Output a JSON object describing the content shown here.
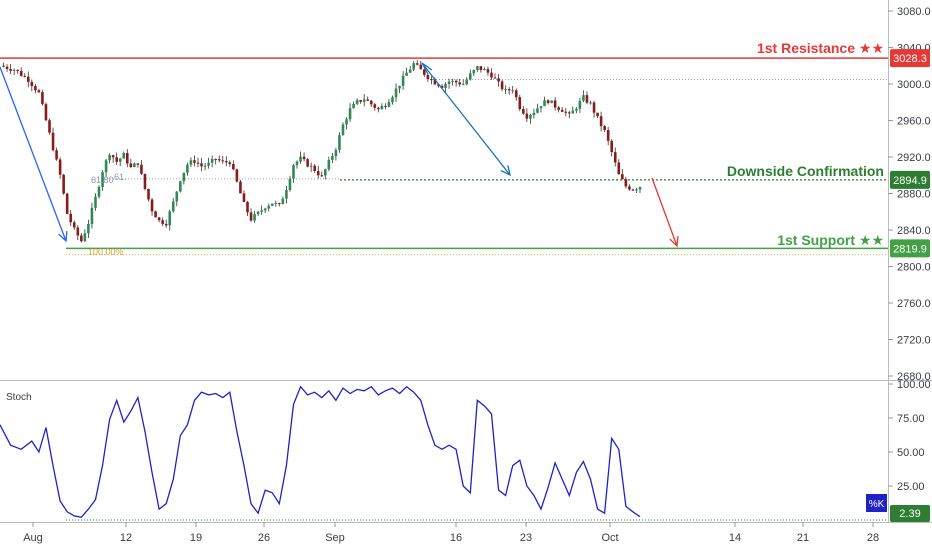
{
  "chart_data": [
    {
      "type": "candlestick",
      "ylim": [
        2660,
        3100
      ],
      "y_ticks": [
        "3080.0",
        "3040.0",
        "3000.0",
        "2960.0",
        "2920.0",
        "2880.0",
        "2840.0",
        "2800.0",
        "2760.0",
        "2720.0",
        "2680.0"
      ],
      "y_tick_values": [
        3080,
        3040,
        3000,
        2960,
        2920,
        2880,
        2840,
        2800,
        2760,
        2720,
        2680
      ],
      "x_ticks": [
        "Aug",
        "12",
        "19",
        "26",
        "Sep",
        "16",
        "23",
        "Oct",
        "14",
        "21",
        "28"
      ],
      "price_path": [
        [
          0,
          3020
        ],
        [
          4,
          3016
        ],
        [
          8,
          3005
        ],
        [
          11,
          2990
        ],
        [
          13,
          2960
        ],
        [
          15,
          2930
        ],
        [
          17,
          2900
        ],
        [
          19,
          2858
        ],
        [
          21,
          2840
        ],
        [
          23,
          2828
        ],
        [
          25,
          2848
        ],
        [
          27,
          2875
        ],
        [
          29,
          2905
        ],
        [
          31,
          2925
        ],
        [
          33,
          2915
        ],
        [
          35,
          2922
        ],
        [
          37,
          2908
        ],
        [
          39,
          2914
        ],
        [
          41,
          2885
        ],
        [
          43,
          2862
        ],
        [
          45,
          2850
        ],
        [
          47,
          2848
        ],
        [
          49,
          2870
        ],
        [
          51,
          2896
        ],
        [
          53,
          2912
        ],
        [
          55,
          2916
        ],
        [
          57,
          2910
        ],
        [
          59,
          2912
        ],
        [
          61,
          2918
        ],
        [
          63,
          2914
        ],
        [
          65,
          2915
        ],
        [
          67,
          2892
        ],
        [
          69,
          2868
        ],
        [
          71,
          2852
        ],
        [
          73,
          2858
        ],
        [
          75,
          2866
        ],
        [
          77,
          2870
        ],
        [
          79,
          2866
        ],
        [
          81,
          2886
        ],
        [
          83,
          2912
        ],
        [
          85,
          2918
        ],
        [
          87,
          2912
        ],
        [
          89,
          2906
        ],
        [
          91,
          2898
        ],
        [
          93,
          2914
        ],
        [
          95,
          2930
        ],
        [
          97,
          2955
        ],
        [
          99,
          2972
        ],
        [
          101,
          2980
        ],
        [
          103,
          2984
        ],
        [
          105,
          2978
        ],
        [
          107,
          2972
        ],
        [
          109,
          2978
        ],
        [
          111,
          2988
        ],
        [
          113,
          3000
        ],
        [
          115,
          3012
        ],
        [
          117,
          3022
        ],
        [
          119,
          3015
        ],
        [
          121,
          3008
        ],
        [
          123,
          3002
        ],
        [
          125,
          2998
        ],
        [
          127,
          3003
        ],
        [
          129,
          3002
        ],
        [
          131,
          3000
        ],
        [
          133,
          3010
        ],
        [
          135,
          3018
        ],
        [
          137,
          3015
        ],
        [
          139,
          3010
        ],
        [
          141,
          3000
        ],
        [
          143,
          2992
        ],
        [
          145,
          2995
        ],
        [
          147,
          2975
        ],
        [
          149,
          2965
        ],
        [
          151,
          2970
        ],
        [
          153,
          2978
        ],
        [
          155,
          2982
        ],
        [
          157,
          2976
        ],
        [
          159,
          2972
        ],
        [
          161,
          2965
        ],
        [
          163,
          2975
        ],
        [
          165,
          2985
        ],
        [
          167,
          2978
        ],
        [
          169,
          2962
        ],
        [
          171,
          2948
        ],
        [
          173,
          2925
        ],
        [
          175,
          2900
        ],
        [
          177,
          2888
        ],
        [
          179,
          2885
        ],
        [
          181,
          2888
        ]
      ],
      "annotations": {
        "resistance": {
          "value": 3028.3,
          "label": "1st Resistance ★★",
          "price_label": "3028.3",
          "color": "#e53935"
        },
        "confirmation": {
          "value": 2894.9,
          "label": "Downside Confirmation",
          "price_label": "2894.9",
          "color": "#2e7d32"
        },
        "support": {
          "value": 2819.9,
          "label": "1st Support ★★",
          "price_label": "2819.9",
          "color": "#43a047"
        },
        "fib_labels": [
          "61.80",
          "61.",
          "100.00%"
        ]
      }
    },
    {
      "type": "line",
      "title": "Stoch",
      "ylim": [
        0,
        100
      ],
      "y_ticks": [
        "100.00",
        "75.00",
        "50.00",
        "25.00"
      ],
      "y_tick_values": [
        100,
        75,
        50,
        25
      ],
      "series": [
        {
          "name": "%K",
          "color": "#1e22c8"
        }
      ],
      "last_value_label": "2.39",
      "last_value": 2.39,
      "k_path": [
        [
          0,
          70
        ],
        [
          3,
          55
        ],
        [
          6,
          52
        ],
        [
          9,
          58
        ],
        [
          11,
          50
        ],
        [
          13,
          68
        ],
        [
          15,
          40
        ],
        [
          17,
          14
        ],
        [
          19,
          6
        ],
        [
          21,
          3
        ],
        [
          23,
          2
        ],
        [
          25,
          8
        ],
        [
          27,
          15
        ],
        [
          29,
          40
        ],
        [
          31,
          74
        ],
        [
          33,
          88
        ],
        [
          35,
          72
        ],
        [
          37,
          80
        ],
        [
          39,
          90
        ],
        [
          41,
          65
        ],
        [
          43,
          35
        ],
        [
          45,
          8
        ],
        [
          47,
          12
        ],
        [
          49,
          30
        ],
        [
          51,
          62
        ],
        [
          53,
          70
        ],
        [
          55,
          88
        ],
        [
          57,
          94
        ],
        [
          59,
          92
        ],
        [
          61,
          93
        ],
        [
          63,
          90
        ],
        [
          65,
          94
        ],
        [
          67,
          65
        ],
        [
          69,
          40
        ],
        [
          71,
          12
        ],
        [
          73,
          5
        ],
        [
          75,
          22
        ],
        [
          77,
          20
        ],
        [
          79,
          12
        ],
        [
          81,
          40
        ],
        [
          83,
          85
        ],
        [
          85,
          98
        ],
        [
          87,
          92
        ],
        [
          89,
          94
        ],
        [
          91,
          90
        ],
        [
          93,
          95
        ],
        [
          95,
          88
        ],
        [
          97,
          97
        ],
        [
          99,
          93
        ],
        [
          101,
          96
        ],
        [
          103,
          95
        ],
        [
          105,
          98
        ],
        [
          107,
          92
        ],
        [
          109,
          95
        ],
        [
          111,
          97
        ],
        [
          113,
          93
        ],
        [
          115,
          98
        ],
        [
          117,
          94
        ],
        [
          119,
          88
        ],
        [
          121,
          70
        ],
        [
          123,
          55
        ],
        [
          125,
          52
        ],
        [
          127,
          55
        ],
        [
          129,
          52
        ],
        [
          131,
          25
        ],
        [
          133,
          20
        ],
        [
          135,
          88
        ],
        [
          137,
          84
        ],
        [
          139,
          78
        ],
        [
          141,
          22
        ],
        [
          143,
          18
        ],
        [
          145,
          40
        ],
        [
          147,
          44
        ],
        [
          149,
          25
        ],
        [
          151,
          18
        ],
        [
          153,
          8
        ],
        [
          155,
          24
        ],
        [
          157,
          42
        ],
        [
          159,
          30
        ],
        [
          161,
          18
        ],
        [
          163,
          35
        ],
        [
          165,
          43
        ],
        [
          167,
          30
        ],
        [
          169,
          8
        ],
        [
          171,
          5
        ],
        [
          173,
          60
        ],
        [
          175,
          52
        ],
        [
          177,
          10
        ],
        [
          179,
          6
        ],
        [
          181,
          2.39
        ]
      ]
    }
  ]
}
